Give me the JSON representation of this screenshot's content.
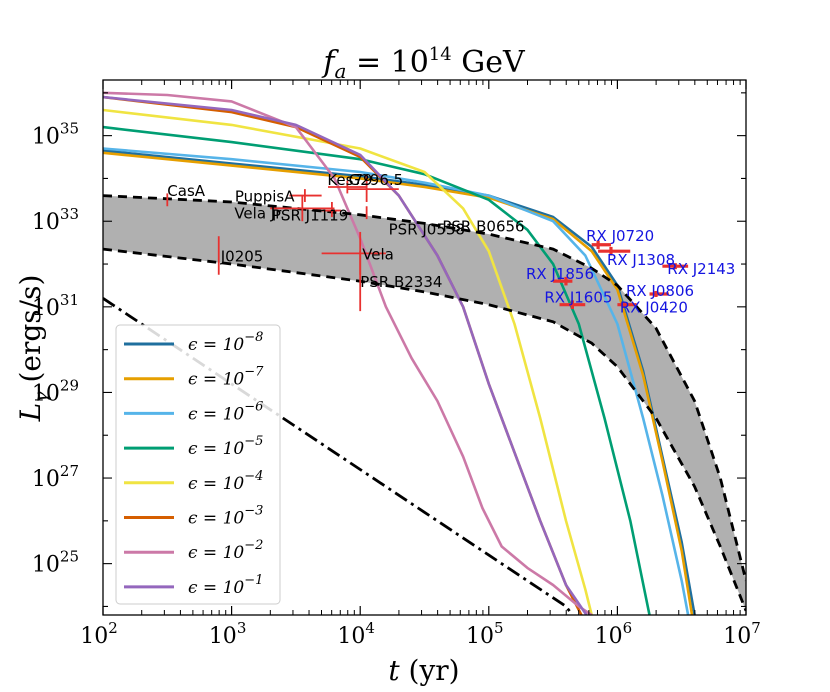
{
  "chart_data": {
    "type": "line",
    "title": "f_a = 10^14 GeV",
    "title_main": "f",
    "title_sub": "a",
    "title_rest": " = 10",
    "title_exp": "14",
    "title_unit": " GeV",
    "xlabel": "t",
    "xlabel_unit": " (yr)",
    "ylabel": "L",
    "ylabel_sub": "γ",
    "ylabel_unit": " (ergs/s)",
    "x_scale": "log",
    "y_scale": "log",
    "xlim_log10": [
      2,
      7
    ],
    "ylim_log10": [
      23.8,
      36.3
    ],
    "x_ticks_log10": [
      2,
      3,
      4,
      5,
      6,
      7
    ],
    "y_ticks_log10": [
      25,
      27,
      29,
      31,
      33,
      35
    ],
    "tick_base": "10",
    "series": [
      {
        "name": "ε = 10^-8",
        "exp": "−8",
        "color": "#1f6f9e",
        "points": [
          [
            2,
            34.65
          ],
          [
            3,
            34.35
          ],
          [
            4,
            34.05
          ],
          [
            4.5,
            33.85
          ],
          [
            5,
            33.6
          ],
          [
            5.5,
            33.1
          ],
          [
            5.8,
            32.4
          ],
          [
            6,
            31.5
          ],
          [
            6.2,
            29.5
          ],
          [
            6.35,
            27.5
          ],
          [
            6.5,
            25.5
          ],
          [
            6.6,
            23.8
          ]
        ]
      },
      {
        "name": "ε = 10^-7",
        "exp": "−7",
        "color": "#e69f00",
        "points": [
          [
            2,
            34.6
          ],
          [
            3,
            34.3
          ],
          [
            4,
            34.0
          ],
          [
            4.5,
            33.8
          ],
          [
            5,
            33.55
          ],
          [
            5.5,
            33.05
          ],
          [
            5.8,
            32.3
          ],
          [
            6,
            31.4
          ],
          [
            6.2,
            29.4
          ],
          [
            6.35,
            27.4
          ],
          [
            6.5,
            25.3
          ],
          [
            6.58,
            23.8
          ]
        ]
      },
      {
        "name": "ε = 10^-6",
        "exp": "−6",
        "color": "#56b4e9",
        "points": [
          [
            2,
            34.7
          ],
          [
            3,
            34.45
          ],
          [
            4,
            34.15
          ],
          [
            4.5,
            33.9
          ],
          [
            5,
            33.6
          ],
          [
            5.5,
            33.0
          ],
          [
            5.75,
            32.2
          ],
          [
            6,
            30.6
          ],
          [
            6.2,
            28.4
          ],
          [
            6.35,
            26.6
          ],
          [
            6.5,
            24.6
          ],
          [
            6.55,
            23.8
          ]
        ]
      },
      {
        "name": "ε = 10^-5",
        "exp": "−5",
        "color": "#009e73",
        "points": [
          [
            2,
            35.2
          ],
          [
            3,
            34.85
          ],
          [
            4,
            34.45
          ],
          [
            4.5,
            34.1
          ],
          [
            5,
            33.5
          ],
          [
            5.3,
            32.8
          ],
          [
            5.5,
            32.0
          ],
          [
            5.7,
            30.6
          ],
          [
            5.9,
            28.4
          ],
          [
            6.1,
            26.0
          ],
          [
            6.25,
            23.8
          ]
        ]
      },
      {
        "name": "ε = 10^-4",
        "exp": "−4",
        "color": "#f0e442",
        "points": [
          [
            2,
            35.6
          ],
          [
            3,
            35.25
          ],
          [
            4,
            34.7
          ],
          [
            4.5,
            34.15
          ],
          [
            4.8,
            33.3
          ],
          [
            5,
            32.3
          ],
          [
            5.2,
            30.6
          ],
          [
            5.4,
            28.4
          ],
          [
            5.6,
            26.0
          ],
          [
            5.75,
            24.4
          ],
          [
            5.8,
            23.8
          ]
        ]
      },
      {
        "name": "ε = 10^-3",
        "exp": "−3",
        "color": "#d55e00",
        "points": [
          [
            2,
            35.9
          ],
          [
            3,
            35.55
          ],
          [
            3.5,
            35.2
          ],
          [
            4,
            34.5
          ],
          [
            4.3,
            33.6
          ],
          [
            4.6,
            32.2
          ],
          [
            4.8,
            31.0
          ],
          [
            5,
            29.2
          ],
          [
            5.2,
            27.6
          ],
          [
            5.4,
            26.0
          ],
          [
            5.6,
            24.5
          ],
          [
            5.72,
            23.8
          ]
        ]
      },
      {
        "name": "ε = 10^-2",
        "exp": "−2",
        "color": "#cc79a7",
        "points": [
          [
            2,
            36.0
          ],
          [
            2.5,
            35.95
          ],
          [
            3,
            35.8
          ],
          [
            3.5,
            35.2
          ],
          [
            3.8,
            34.0
          ],
          [
            4,
            32.6
          ],
          [
            4.2,
            31.0
          ],
          [
            4.4,
            29.8
          ],
          [
            4.6,
            28.8
          ],
          [
            4.8,
            27.5
          ],
          [
            4.95,
            26.3
          ],
          [
            5.1,
            25.4
          ],
          [
            5.3,
            24.9
          ],
          [
            5.5,
            24.5
          ],
          [
            5.7,
            24.0
          ],
          [
            5.8,
            23.8
          ]
        ]
      },
      {
        "name": "ε = 10^-1",
        "exp": "−1",
        "color": "#9467bd",
        "points": [
          [
            2,
            35.9
          ],
          [
            3,
            35.6
          ],
          [
            3.5,
            35.25
          ],
          [
            4,
            34.55
          ],
          [
            4.3,
            33.6
          ],
          [
            4.6,
            32.2
          ],
          [
            4.8,
            31.0
          ],
          [
            5,
            29.2
          ],
          [
            5.2,
            27.6
          ],
          [
            5.4,
            26.0
          ],
          [
            5.6,
            24.5
          ],
          [
            5.76,
            23.8
          ]
        ]
      }
    ],
    "band_upper": [
      [
        2,
        33.6
      ],
      [
        3,
        33.45
      ],
      [
        4,
        33.15
      ],
      [
        4.5,
        32.95
      ],
      [
        5,
        32.7
      ],
      [
        5.5,
        32.35
      ],
      [
        5.8,
        31.9
      ],
      [
        6,
        31.5
      ],
      [
        6.3,
        30.5
      ],
      [
        6.6,
        28.8
      ],
      [
        6.8,
        27.0
      ],
      [
        7,
        24.6
      ]
    ],
    "band_lower": [
      [
        2,
        32.35
      ],
      [
        3,
        32.0
      ],
      [
        4,
        31.6
      ],
      [
        4.5,
        31.35
      ],
      [
        5,
        31.05
      ],
      [
        5.5,
        30.65
      ],
      [
        5.8,
        30.15
      ],
      [
        6,
        29.6
      ],
      [
        6.3,
        28.4
      ],
      [
        6.6,
        26.8
      ],
      [
        6.8,
        25.4
      ],
      [
        7,
        23.9
      ]
    ],
    "dashdot_line": [
      [
        2,
        31.2
      ],
      [
        2.5,
        30.2
      ],
      [
        3,
        29.2
      ],
      [
        3.5,
        28.2
      ],
      [
        4,
        27.2
      ],
      [
        4.5,
        26.2
      ],
      [
        5,
        25.2
      ],
      [
        5.6,
        24.0
      ],
      [
        5.65,
        23.8
      ]
    ],
    "observations": [
      {
        "name": "CasA",
        "color": "#e8312f",
        "label_color": "#000000",
        "x": 2.5,
        "y": 33.5,
        "xerr": [
          2.5,
          2.5
        ],
        "yerr": [
          33.35,
          33.65
        ]
      },
      {
        "name": "PuppisA",
        "color": "#e8312f",
        "label_color": "#000000",
        "x": 3.57,
        "y": 33.6,
        "xerr": [
          3.45,
          3.7
        ],
        "yerr": [
          33.45,
          33.75
        ]
      },
      {
        "name": "Kes79",
        "color": "#e8312f",
        "label_color": "#000000",
        "x": 3.9,
        "y": 33.8,
        "xerr": [
          3.75,
          4.05
        ],
        "yerr": [
          33.65,
          33.95
        ]
      },
      {
        "name": "G296.5",
        "color": "#e8312f",
        "label_color": "#000000",
        "x": 4.05,
        "y": 33.75,
        "xerr": [
          3.9,
          4.3
        ],
        "yerr": [
          33.45,
          34.05
        ]
      },
      {
        "name": "Vela Jr.",
        "color": "#e8312f",
        "label_color": "#000000",
        "x": 3.55,
        "y": 33.3,
        "xerr": [
          3.3,
          3.8
        ],
        "yerr": [
          33.0,
          33.6
        ]
      },
      {
        "name": "PSR J1119",
        "color": "#e8312f",
        "label_color": "#000000",
        "x": 3.78,
        "y": 33.25,
        "xerr": [
          3.7,
          3.85
        ],
        "yerr": [
          33.1,
          33.45
        ]
      },
      {
        "name": "PSR J0538",
        "color": "#e8312f",
        "label_color": "#000000",
        "x": 4.05,
        "y": 33.2,
        "xerr": [
          4.05,
          4.05
        ],
        "yerr": [
          33.05,
          33.35
        ]
      },
      {
        "name": "PSR B0656",
        "color": "#e8312f",
        "label_color": "#000000",
        "x": 4.95,
        "y": 32.9,
        "xerr": [
          4.95,
          4.95
        ],
        "yerr": [
          32.9,
          32.9
        ]
      },
      {
        "name": "J0205",
        "color": "#e8312f",
        "label_color": "#000000",
        "x": 2.9,
        "y": 32.2,
        "xerr": [
          2.9,
          2.9
        ],
        "yerr": [
          31.75,
          32.65
        ]
      },
      {
        "name": "Vela",
        "color": "#e8312f",
        "label_color": "#000000",
        "x": 4.0,
        "y": 32.25,
        "xerr": [
          3.7,
          4.2
        ],
        "yerr": [
          31.75,
          32.75
        ]
      },
      {
        "name": "PSR B2334",
        "color": "#e8312f",
        "label_color": "#000000",
        "x": 4.0,
        "y": 31.6,
        "xerr": [
          4.0,
          4.0
        ],
        "yerr": [
          30.9,
          32.3
        ]
      },
      {
        "name": "RX J1856",
        "color": "#e8312f",
        "label_color": "#1515e0",
        "x": 5.6,
        "y": 31.6,
        "xerr": [
          5.5,
          5.65
        ],
        "yerr": [
          31.5,
          31.7
        ]
      },
      {
        "name": "RX J1605",
        "color": "#e8312f",
        "label_color": "#1515e0",
        "x": 5.65,
        "y": 31.05,
        "xerr": [
          5.55,
          5.75
        ],
        "yerr": [
          30.95,
          31.15
        ]
      },
      {
        "name": "RX J0720",
        "color": "#e8312f",
        "label_color": "#1515e0",
        "x": 5.85,
        "y": 32.45,
        "xerr": [
          5.8,
          5.95
        ],
        "yerr": [
          32.35,
          32.55
        ]
      },
      {
        "name": "RX J1308",
        "color": "#e8312f",
        "label_color": "#1515e0",
        "x": 5.95,
        "y": 32.3,
        "xerr": [
          5.85,
          6.1
        ],
        "yerr": [
          32.2,
          32.4
        ]
      },
      {
        "name": "RX J2143",
        "color": "#e8312f",
        "label_color": "#1515e0",
        "x": 6.45,
        "y": 31.95,
        "xerr": [
          6.35,
          6.55
        ],
        "yerr": [
          31.88,
          32.02
        ]
      },
      {
        "name": "RX J0806",
        "color": "#e8312f",
        "label_color": "#1515e0",
        "x": 6.3,
        "y": 31.3,
        "xerr": [
          6.25,
          6.4
        ],
        "yerr": [
          31.23,
          31.37
        ]
      },
      {
        "name": "RX J0420",
        "color": "#e8312f",
        "label_color": "#1515e0",
        "x": 6.05,
        "y": 31.05,
        "xerr": [
          6.0,
          6.15
        ],
        "yerr": [
          30.98,
          31.12
        ]
      }
    ],
    "legend_position": "lower-left",
    "legend_symbol": "ϵ = 10",
    "grid": false
  }
}
